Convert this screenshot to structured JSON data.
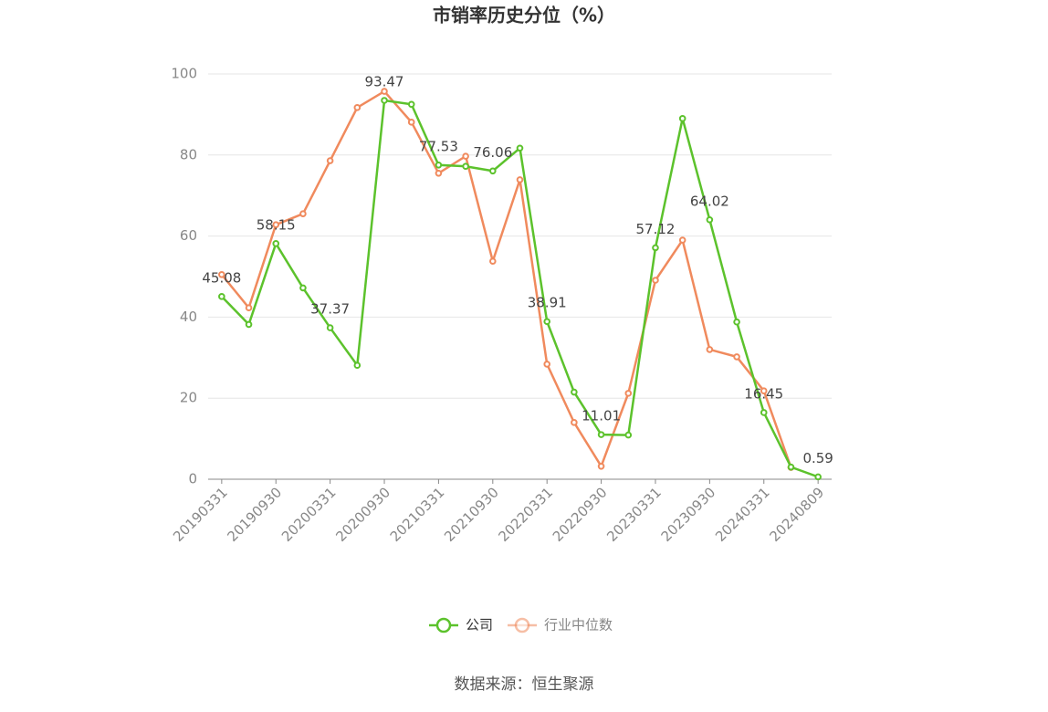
{
  "chart_data": {
    "type": "line",
    "title": "市销率历史分位（%）",
    "categories": [
      "20190331",
      null,
      "20190930",
      null,
      "20200331",
      null,
      "20200930",
      null,
      "20210331",
      null,
      "20210930",
      null,
      "20220331",
      null,
      "20220930",
      null,
      "20230331",
      null,
      "20230930",
      null,
      "20240331",
      null,
      "20240809"
    ],
    "series": [
      {
        "name": "公司",
        "color": "#5cc22c",
        "values": [
          45.08,
          38.2,
          58.15,
          47.2,
          37.37,
          28.1,
          93.47,
          92.5,
          77.53,
          77.2,
          76.06,
          81.7,
          38.91,
          21.5,
          11.01,
          10.9,
          57.12,
          89.0,
          64.02,
          38.8,
          16.45,
          3.0,
          0.59
        ],
        "value_labels": [
          "45.08",
          null,
          "58.15",
          null,
          "37.37",
          null,
          "93.47",
          null,
          "77.53",
          null,
          "76.06",
          null,
          "38.91",
          null,
          "11.01",
          null,
          "57.12",
          null,
          "64.02",
          null,
          "16.45",
          null,
          "0.59"
        ]
      },
      {
        "name": "行业中位数",
        "color": "#f08a5d",
        "values": [
          50.5,
          42.3,
          62.8,
          65.5,
          78.6,
          91.7,
          95.7,
          88.1,
          75.5,
          79.7,
          53.8,
          73.9,
          28.4,
          14.0,
          3.2,
          21.2,
          49.1,
          59.0,
          32.0,
          30.2,
          21.8,
          2.9,
          null
        ]
      }
    ],
    "ylim": [
      0,
      100
    ],
    "yticks": [
      0,
      20,
      40,
      60,
      80,
      100
    ],
    "grid": true,
    "legend": "bottom",
    "source": "数据来源：恒生聚源"
  }
}
